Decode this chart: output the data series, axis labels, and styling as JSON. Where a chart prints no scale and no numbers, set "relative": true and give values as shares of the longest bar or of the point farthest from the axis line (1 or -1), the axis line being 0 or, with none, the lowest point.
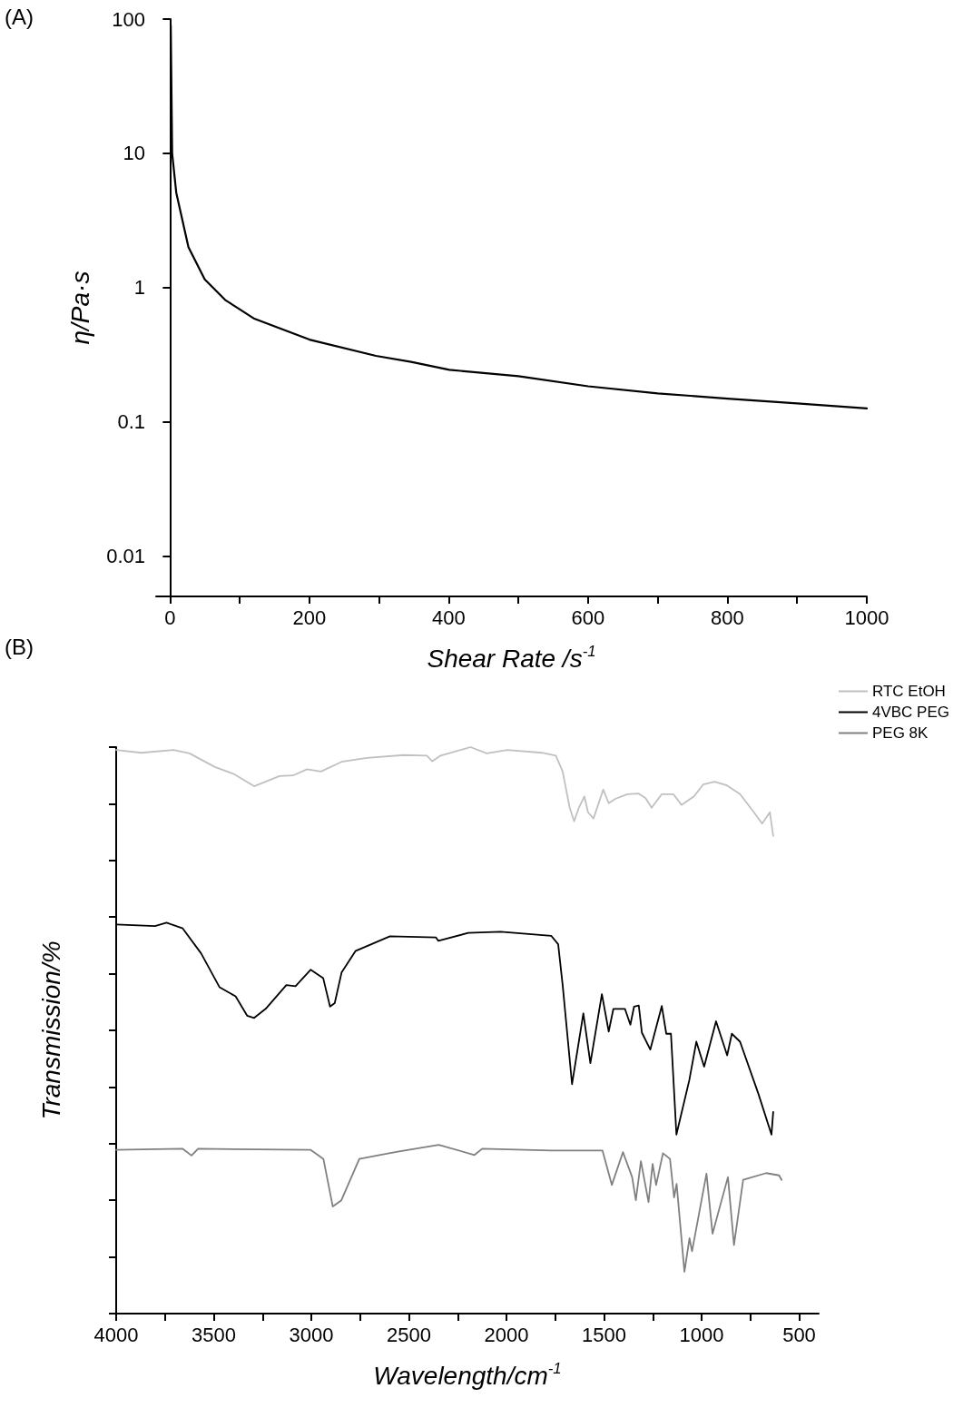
{
  "chart_data": [
    {
      "type": "line",
      "xlabel": "Shear Rate /s$^{-1}$",
      "ylabel": "η/Pa·s",
      "annotations": [
        "(A)"
      ],
      "log": "y",
      "grid": false,
      "legend": false,
      "marker": "none",
      "line_style": "solid",
      "xlim": [
        -20,
        1000
      ],
      "ylim": [
        0.005,
        100
      ],
      "xticks": [
        0,
        {
          "value": 100,
          "label": null
        },
        200,
        {
          "value": 300,
          "label": null
        },
        400,
        {
          "value": 500,
          "label": null
        },
        600,
        {
          "value": 700,
          "label": null
        },
        800,
        {
          "value": 900,
          "label": null
        },
        1000
      ],
      "yticks": [
        0.01,
        0.1,
        1,
        10,
        100
      ],
      "series": [
        {
          "color": "#000000",
          "x": [
            1,
            3,
            8.9,
            26.4,
            49.8,
            79,
            120,
            200,
            295.5,
            346,
            400.8,
            500,
            600,
            700,
            800,
            900,
            1000
          ],
          "values": [
            90,
            10,
            5.1,
            2.0,
            1.15,
            0.81,
            0.59,
            0.41,
            0.31,
            0.28,
            0.244,
            0.219,
            0.184,
            0.163,
            0.149,
            0.137,
            0.126
          ]
        }
      ]
    },
    {
      "type": "line",
      "xlabel": "Wavelength/cm$^{-1}$",
      "ylabel": "Transmission/%",
      "annotations": [
        "(B)"
      ],
      "relative": true,
      "tick_labels": "x",
      "grid": false,
      "legend": "top right",
      "marker": "none",
      "line_style": "solid",
      "xlim": [
        4000,
        400
      ],
      "xticks": [
        4000,
        {
          "value": 3750,
          "label": null
        },
        3500,
        {
          "value": 3250,
          "label": null
        },
        3000,
        {
          "value": 2750,
          "label": null
        },
        2500,
        {
          "value": 2250,
          "label": null
        },
        2000,
        {
          "value": 1750,
          "label": null
        },
        1500,
        {
          "value": 1250,
          "label": null
        },
        1000,
        {
          "value": 750,
          "label": null
        },
        500
      ],
      "series": [
        {
          "name": "RTC EtOH",
          "color": "#c0c0c0",
          "x": [
            4000,
            3872,
            3706,
            3624,
            3494,
            3400,
            3293,
            3163,
            3093,
            3022,
            2951,
            2845,
            2715,
            2526,
            2408,
            2380,
            2337,
            2184,
            2101,
            1995,
            1818,
            1747,
            1712,
            1676,
            1653,
            1629,
            1601,
            1582,
            1554,
            1504,
            1476,
            1440,
            1381,
            1322,
            1287,
            1256,
            1204,
            1145,
            1103,
            1039,
            992,
            933,
            874,
            803,
            732,
            690,
            650,
            633
          ],
          "values": [
            0.995,
            0.99,
            0.995,
            0.989,
            0.965,
            0.953,
            0.931,
            0.949,
            0.95,
            0.961,
            0.957,
            0.974,
            0.981,
            0.986,
            0.985,
            0.975,
            0.985,
            1,
            0.989,
            0.995,
            0.99,
            0.985,
            0.957,
            0.893,
            0.869,
            0.893,
            0.913,
            0.885,
            0.874,
            0.925,
            0.901,
            0.909,
            0.917,
            0.918,
            0.91,
            0.893,
            0.917,
            0.917,
            0.898,
            0.913,
            0.934,
            0.939,
            0.933,
            0.917,
            0.885,
            0.865,
            0.885,
            0.843
          ]
        },
        {
          "name": "4VBC PEG",
          "color": "#000000",
          "x": [
            4000,
            3801,
            3742,
            3659,
            3565,
            3470,
            3388,
            3329,
            3293,
            3234,
            3128,
            3081,
            3003,
            2939,
            2904,
            2880,
            2845,
            2774,
            2597,
            2361,
            2349,
            2196,
            2030,
            1771,
            1735,
            1712,
            1664,
            1606,
            1570,
            1511,
            1476,
            1452,
            1393,
            1365,
            1346,
            1322,
            1306,
            1263,
            1204,
            1181,
            1157,
            1129,
            1063,
            1027,
            987,
            926,
            869,
            845,
            803,
            709,
            642,
            633
          ],
          "values": [
            0.687,
            0.684,
            0.69,
            0.68,
            0.636,
            0.576,
            0.56,
            0.526,
            0.522,
            0.538,
            0.58,
            0.578,
            0.607,
            0.592,
            0.542,
            0.548,
            0.602,
            0.64,
            0.666,
            0.664,
            0.658,
            0.672,
            0.674,
            0.667,
            0.652,
            0.58,
            0.405,
            0.53,
            0.442,
            0.564,
            0.498,
            0.538,
            0.538,
            0.51,
            0.542,
            0.544,
            0.496,
            0.466,
            0.543,
            0.494,
            0.494,
            0.316,
            0.412,
            0.48,
            0.436,
            0.516,
            0.456,
            0.494,
            0.48,
            0.388,
            0.316,
            0.356
          ]
        },
        {
          "name": "PEG 8K",
          "color": "#808080",
          "x": [
            4000,
            3659,
            3614,
            3580,
            3003,
            2938,
            2890,
            2846,
            2754,
            2557,
            2347,
            2164,
            2124,
            1770,
            1508,
            1460,
            1403,
            1356,
            1337,
            1311,
            1272,
            1251,
            1233,
            1198,
            1162,
            1141,
            1128,
            1088,
            1062,
            1049,
            975,
            944,
            865,
            834,
            787,
            669,
            603,
            590
          ],
          "values": [
            0.289,
            0.291,
            0.279,
            0.291,
            0.289,
            0.273,
            0.189,
            0.2,
            0.273,
            0.286,
            0.298,
            0.28,
            0.291,
            0.288,
            0.288,
            0.227,
            0.285,
            0.241,
            0.2,
            0.269,
            0.197,
            0.264,
            0.227,
            0.283,
            0.273,
            0.205,
            0.229,
            0.074,
            0.133,
            0.11,
            0.247,
            0.141,
            0.241,
            0.121,
            0.236,
            0.248,
            0.244,
            0.236
          ]
        }
      ]
    }
  ]
}
